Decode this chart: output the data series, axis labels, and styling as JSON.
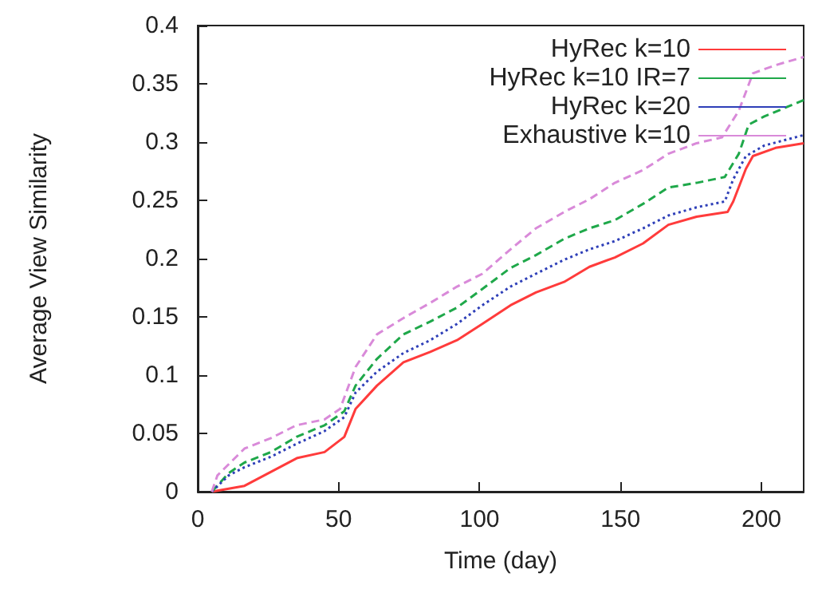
{
  "chart_data": {
    "type": "line",
    "xlabel": "Time (day)",
    "ylabel": "Average View Similarity",
    "xlim": [
      0,
      215
    ],
    "xticks": [
      0,
      50,
      100,
      150,
      200
    ],
    "ylim": [
      0,
      0.4
    ],
    "yticks": [
      0,
      0.05,
      0.1,
      0.15,
      0.2,
      0.25,
      0.3,
      0.35,
      0.4
    ],
    "grid": false,
    "legend": "top right",
    "marker": "none",
    "series": [
      {
        "name": "HyRec k=10",
        "color": "#ff3b3b",
        "line_style": "solid",
        "x": [
          5,
          16.6,
          26,
          35.4,
          45,
          52,
          56,
          63.6,
          73,
          82.5,
          92,
          101,
          111,
          120,
          130,
          139,
          148,
          158,
          167,
          177,
          188,
          190,
          194.5,
          197,
          205,
          215
        ],
        "values": [
          0,
          0.005,
          0.017,
          0.029,
          0.034,
          0.047,
          0.071,
          0.091,
          0.111,
          0.12,
          0.13,
          0.144,
          0.16,
          0.171,
          0.18,
          0.193,
          0.201,
          0.213,
          0.229,
          0.236,
          0.24,
          0.249,
          0.277,
          0.288,
          0.295,
          0.299
        ]
      },
      {
        "name": "HyRec k=10 IR=7",
        "color": "#1fa84a",
        "line_style": "dashed",
        "x": [
          5,
          11,
          16.6,
          26,
          35,
          45,
          52,
          56,
          63.6,
          73,
          82.5,
          92,
          101,
          111,
          120,
          130,
          139,
          148,
          158,
          167,
          177,
          187,
          192,
          195.5,
          201,
          215
        ],
        "values": [
          0,
          0.016,
          0.025,
          0.034,
          0.047,
          0.057,
          0.069,
          0.091,
          0.114,
          0.135,
          0.146,
          0.158,
          0.174,
          0.192,
          0.203,
          0.217,
          0.226,
          0.233,
          0.247,
          0.261,
          0.265,
          0.27,
          0.29,
          0.315,
          0.322,
          0.336
        ]
      },
      {
        "name": "HyRec k=20",
        "color": "#2e3fb8",
        "line_style": "dotted",
        "x": [
          5,
          11,
          16.6,
          26,
          35,
          45,
          52,
          56,
          63.6,
          73,
          82.5,
          92,
          101,
          111,
          120,
          130,
          139,
          148,
          158,
          167,
          177,
          187,
          190,
          194.5,
          201,
          215
        ],
        "values": [
          0,
          0.014,
          0.021,
          0.03,
          0.041,
          0.052,
          0.064,
          0.085,
          0.103,
          0.119,
          0.13,
          0.144,
          0.16,
          0.176,
          0.187,
          0.199,
          0.208,
          0.215,
          0.226,
          0.237,
          0.244,
          0.249,
          0.268,
          0.288,
          0.297,
          0.306
        ]
      },
      {
        "name": "Exhaustive k=10",
        "color": "#d98ad9",
        "line_style": "dashed",
        "x": [
          5,
          7,
          16.6,
          26,
          35,
          45,
          50.5,
          56,
          63.6,
          73,
          82.5,
          92,
          101,
          111,
          120,
          130,
          139,
          148,
          158,
          167,
          177,
          186,
          192,
          197,
          205,
          215
        ],
        "values": [
          0,
          0.014,
          0.037,
          0.046,
          0.057,
          0.062,
          0.071,
          0.107,
          0.135,
          0.149,
          0.162,
          0.176,
          0.187,
          0.208,
          0.226,
          0.24,
          0.251,
          0.265,
          0.276,
          0.29,
          0.299,
          0.304,
          0.327,
          0.359,
          0.366,
          0.373
        ]
      }
    ]
  }
}
